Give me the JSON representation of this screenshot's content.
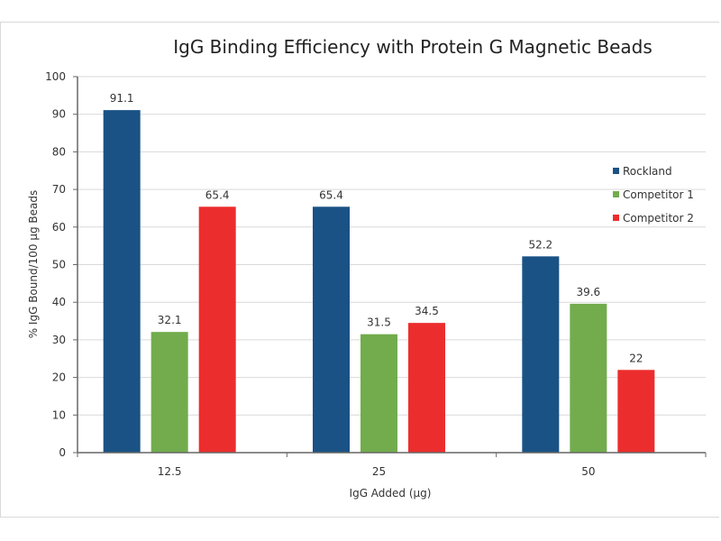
{
  "chart_data": {
    "type": "bar",
    "title": "IgG Binding Efficiency with Protein G Magnetic Beads",
    "xlabel": "IgG Added (µg)",
    "ylabel": "% IgG Bound/100  µg Beads",
    "categories": [
      "12.5",
      "25",
      "50"
    ],
    "series": [
      {
        "name": "Rockland",
        "color": "#1a5285",
        "values": [
          91.1,
          65.4,
          52.2
        ],
        "labels": [
          "91.1",
          "65.4",
          "52.2"
        ]
      },
      {
        "name": "Competitor 1",
        "color": "#72ac4d",
        "values": [
          32.1,
          31.5,
          39.6
        ],
        "labels": [
          "32.1",
          "31.5",
          "39.6"
        ]
      },
      {
        "name": "Competitor 2",
        "color": "#ec2d2d",
        "values": [
          65.4,
          34.5,
          22
        ],
        "labels": [
          "65.4",
          "34.5",
          "22"
        ]
      }
    ],
    "ylim": [
      0,
      100
    ],
    "yticks": [
      0,
      10,
      20,
      30,
      40,
      50,
      60,
      70,
      80,
      90,
      100
    ],
    "ytick_labels": [
      "0",
      "10",
      "20",
      "30",
      "40",
      "50",
      "60",
      "70",
      "80",
      "90",
      "100"
    ],
    "grid": true,
    "legend_position": "right",
    "data_labels": true
  }
}
